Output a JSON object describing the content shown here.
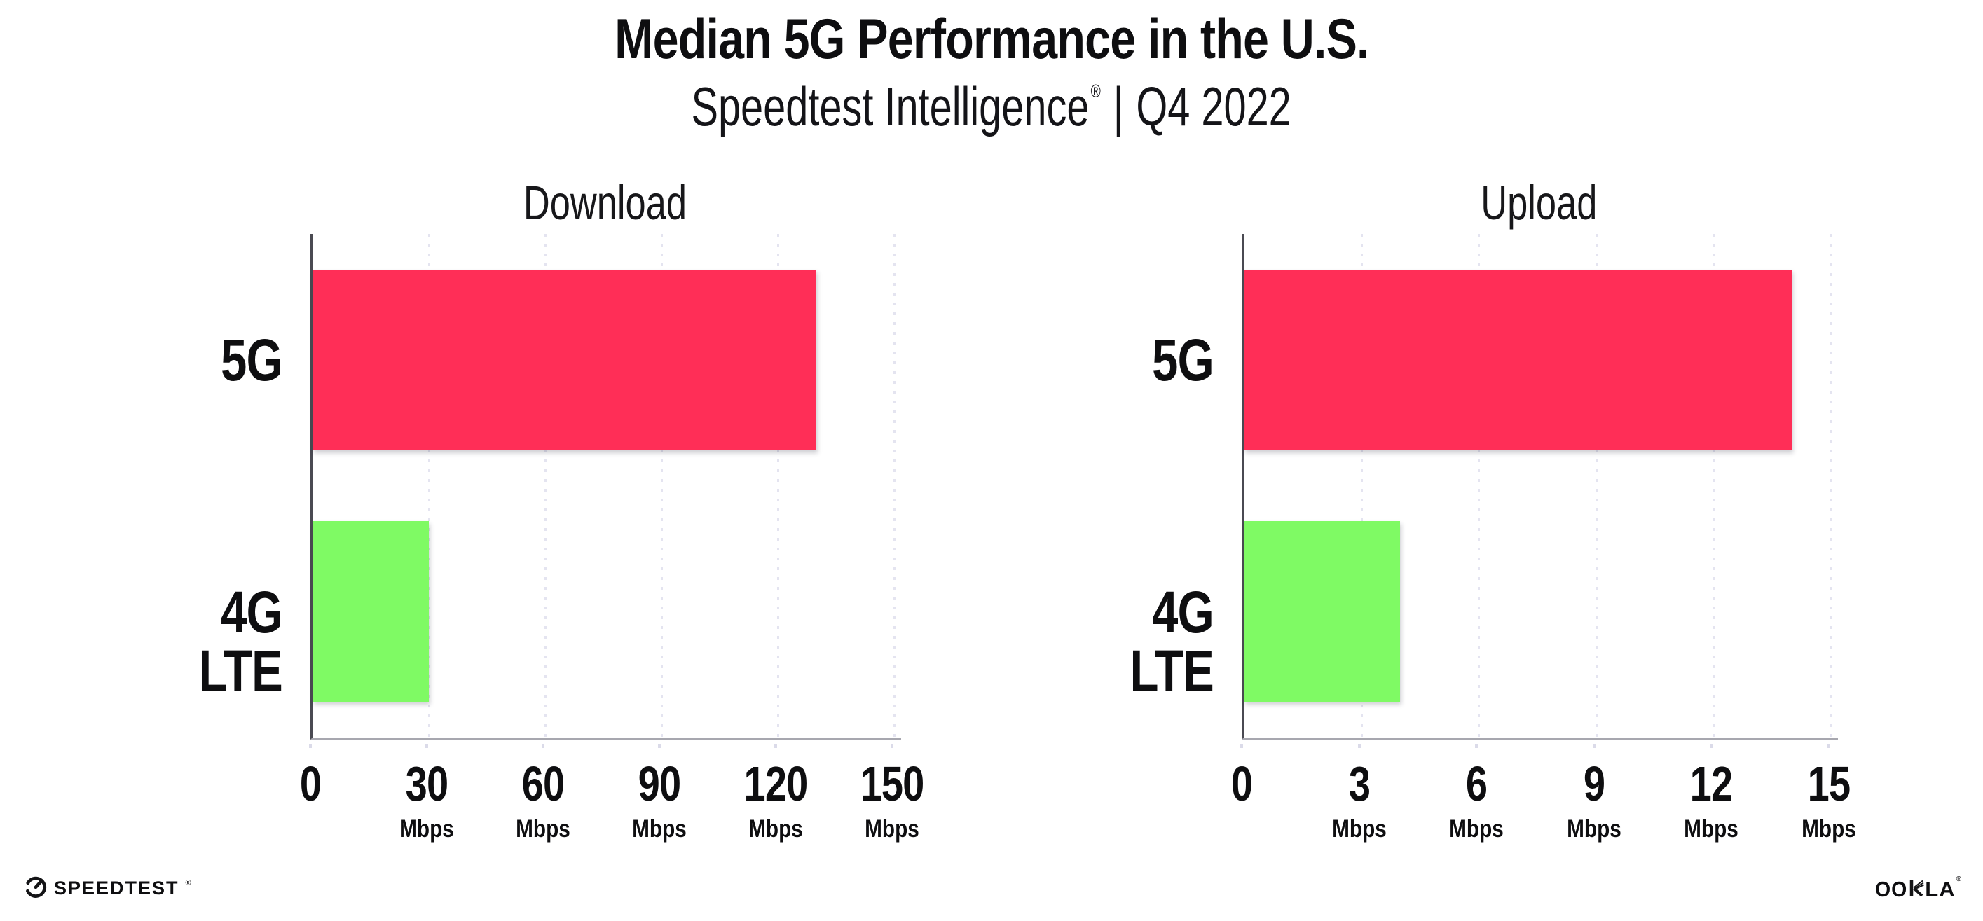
{
  "header": {
    "title": "Median 5G Performance in the U.S.",
    "subtitle": {
      "brand": "Speedtest Intelligence",
      "registered": "®",
      "separator": "|",
      "period": "Q4 2022"
    }
  },
  "chart_data": [
    {
      "type": "bar",
      "orientation": "horizontal",
      "title": "Download",
      "categories": [
        "5G",
        "4G LTE"
      ],
      "values": [
        130,
        30
      ],
      "unit": "Mbps",
      "xlabel": "",
      "ylabel": "",
      "xlim": [
        0,
        150
      ],
      "xticks": [
        0,
        30,
        60,
        90,
        120,
        150
      ],
      "grid": "dotted-vertical",
      "legend": "none",
      "bar_colors": [
        "#FF2E57",
        "#7FFA64"
      ]
    },
    {
      "type": "bar",
      "orientation": "horizontal",
      "title": "Upload",
      "categories": [
        "5G",
        "4G LTE"
      ],
      "values": [
        14,
        4
      ],
      "unit": "Mbps",
      "xlabel": "",
      "ylabel": "",
      "xlim": [
        0,
        15
      ],
      "xticks": [
        0,
        3,
        6,
        9,
        12,
        15
      ],
      "grid": "dotted-vertical",
      "legend": "none",
      "bar_colors": [
        "#FF2E57",
        "#7FFA64"
      ]
    }
  ],
  "colors": {
    "bar_5g": "#FF2E57",
    "bar_4g_lte": "#7FFA64",
    "gridline": "#E4E4F0",
    "y_axis": "#4A4A52",
    "x_axis": "#A7A7AF",
    "text": "#0E0E10"
  },
  "footer": {
    "speedtest_label": "SPEEDTEST",
    "speedtest_registered": "®",
    "ookla_label": "OOKLA",
    "ookla_parts": [
      "OO",
      "LA"
    ],
    "ookla_registered": "®"
  }
}
